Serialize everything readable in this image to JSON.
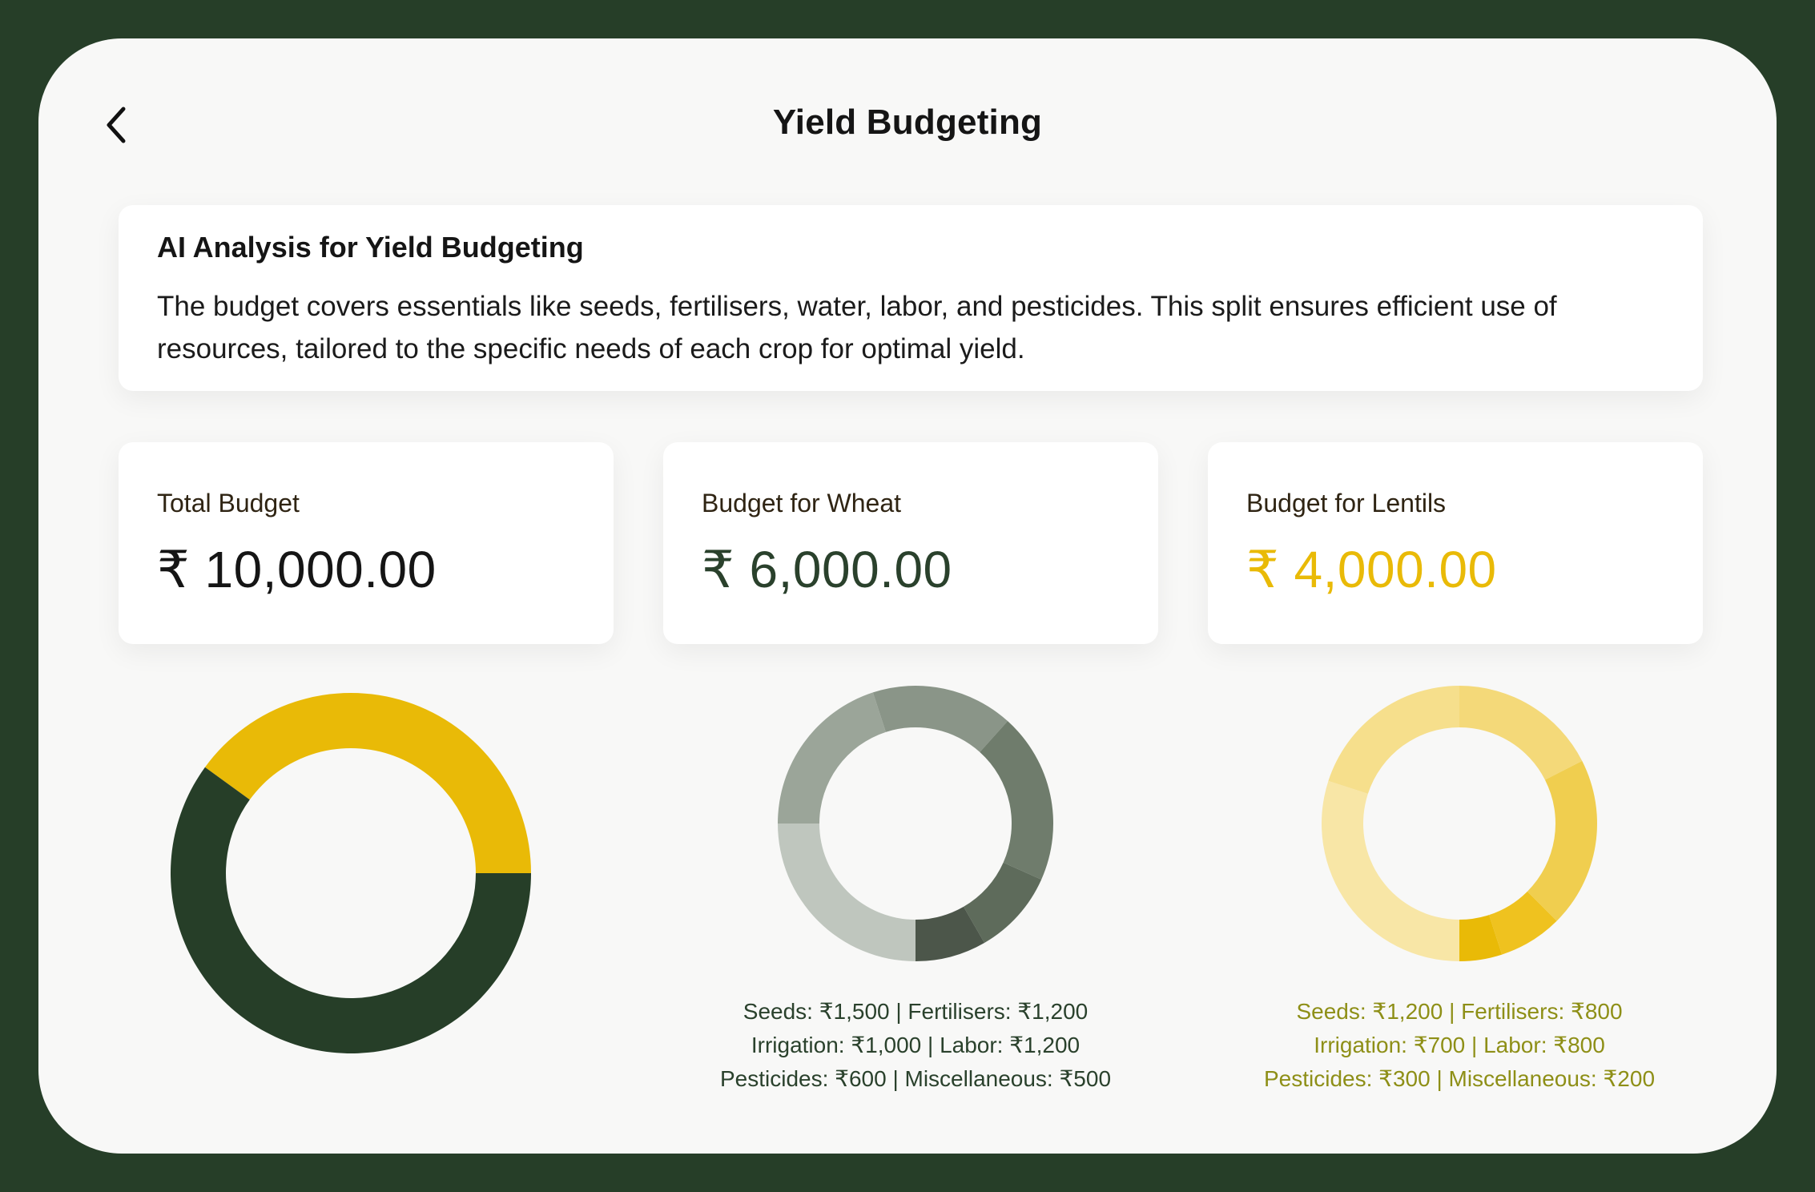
{
  "header": {
    "title": "Yield Budgeting",
    "back_icon": "chevron-left-icon"
  },
  "analysis": {
    "title": "AI Analysis for Yield Budgeting",
    "body": "The budget covers essentials like seeds, fertilisers, water, labor, and pesticides. This split ensures efficient use of resources, tailored to the specific needs of each crop for optimal yield."
  },
  "cards": [
    {
      "label": "Total Budget",
      "value": "₹ 10,000.00",
      "color": "#151515"
    },
    {
      "label": "Budget for Wheat",
      "value": "₹ 6,000.00",
      "color": "#2a412c"
    },
    {
      "label": "Budget for Lentils",
      "value": "₹ 4,000.00",
      "color": "#e9ba07"
    }
  ],
  "colors": {
    "background": "#263e28",
    "panel": "#f8f8f7",
    "wheat": "#263e28",
    "lentils": "#e9ba07",
    "wheat_text": "#2a412c",
    "lentils_text": "#8e8f17"
  },
  "chart_data": [
    {
      "type": "pie",
      "categories": [
        "Lentils",
        "Wheat"
      ],
      "values": [
        4000,
        6000
      ],
      "colors": [
        "#e9ba07",
        "#263e28"
      ]
    },
    {
      "type": "pie",
      "categories": [
        "Seeds",
        "Fertilisers",
        "Irrigation",
        "Labor",
        "Pesticides",
        "Miscellaneous"
      ],
      "values": [
        1500,
        1200,
        1000,
        1200,
        600,
        500
      ],
      "colors": [
        "#bfc6be",
        "#9ba599",
        "#8a9588",
        "#6f7c6c",
        "#5e6b5b",
        "#4c564a"
      ],
      "legend": [
        "Seeds: ₹1,500 | Fertilisers: ₹1,200",
        "Irrigation: ₹1,000 | Labor: ₹1,200",
        "Pesticides: ₹600 | Miscellaneous: ₹500"
      ]
    },
    {
      "type": "pie",
      "categories": [
        "Seeds",
        "Fertilisers",
        "Irrigation",
        "Labor",
        "Pesticides",
        "Miscellaneous"
      ],
      "values": [
        1200,
        800,
        700,
        800,
        300,
        200
      ],
      "colors": [
        "#f8e6a6",
        "#f6df8c",
        "#f4d979",
        "#f0ce4f",
        "#efc21f",
        "#e9ba07"
      ],
      "legend": [
        "Seeds: ₹1,200 | Fertilisers: ₹800",
        "Irrigation: ₹700 | Labor: ₹800",
        "Pesticides: ₹300 | Miscellaneous: ₹200"
      ]
    }
  ]
}
